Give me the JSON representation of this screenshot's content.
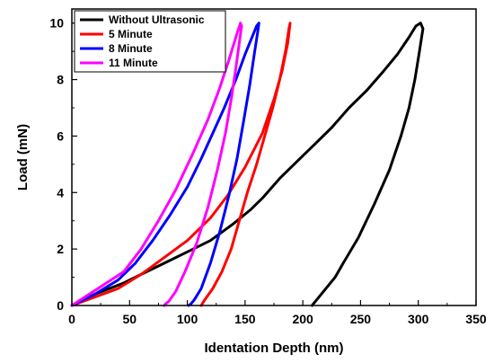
{
  "chart_data": {
    "type": "line",
    "xlabel": "Identation Depth (nm)",
    "ylabel": "Load (mN)",
    "xlim": [
      0,
      350
    ],
    "ylim": [
      0,
      10.5
    ],
    "x_ticks": [
      0,
      50,
      100,
      150,
      200,
      250,
      300,
      350
    ],
    "y_ticks": [
      0,
      2,
      4,
      6,
      8,
      10
    ],
    "grid": false,
    "legend_position": "top-left",
    "series": [
      {
        "name": "Without Ultrasonic",
        "color": "#000000",
        "x": [
          0,
          20,
          45,
          60,
          80,
          100,
          120,
          140,
          155,
          165,
          180,
          195,
          210,
          225,
          240,
          255,
          270,
          282,
          292,
          298,
          302,
          304,
          301,
          297,
          292,
          285,
          275,
          262,
          248,
          235,
          228,
          220,
          212,
          208
        ],
        "y": [
          0,
          0.4,
          0.8,
          1.1,
          1.5,
          1.9,
          2.3,
          2.9,
          3.4,
          3.8,
          4.5,
          5.1,
          5.7,
          6.3,
          7.0,
          7.6,
          8.3,
          8.9,
          9.5,
          9.9,
          10.0,
          9.8,
          9.0,
          8.0,
          7.0,
          6.0,
          4.8,
          3.6,
          2.4,
          1.5,
          1.0,
          0.6,
          0.2,
          0
        ],
        "values": [
          0,
          0.4,
          0.8,
          1.1,
          1.5,
          1.9,
          2.3,
          2.9,
          3.4,
          3.8,
          4.5,
          5.1,
          5.7,
          6.3,
          7.0,
          7.6,
          8.3,
          8.9,
          9.5,
          9.9,
          10.0,
          9.8,
          9.0,
          8.0,
          7.0,
          6.0,
          4.8,
          3.6,
          2.4,
          1.5,
          1.0,
          0.6,
          0.2,
          0
        ]
      },
      {
        "name": "5 Minute",
        "color": "#ff0000",
        "x": [
          0,
          20,
          40,
          60,
          80,
          100,
          120,
          135,
          150,
          165,
          175,
          182,
          187,
          189,
          188,
          185,
          180,
          174,
          167,
          160,
          152,
          145,
          138,
          130,
          122,
          115,
          112
        ],
        "y": [
          0,
          0.3,
          0.6,
          1.1,
          1.7,
          2.3,
          3.1,
          3.9,
          4.9,
          6.1,
          7.3,
          8.3,
          9.3,
          10.0,
          9.8,
          9.0,
          8.0,
          7.0,
          6.0,
          5.0,
          4.0,
          3.0,
          2.0,
          1.2,
          0.6,
          0.2,
          0
        ],
        "values": [
          0,
          0.3,
          0.6,
          1.1,
          1.7,
          2.3,
          3.1,
          3.9,
          4.9,
          6.1,
          7.3,
          8.3,
          9.3,
          10.0,
          9.8,
          9.0,
          8.0,
          7.0,
          6.0,
          5.0,
          4.0,
          3.0,
          2.0,
          1.2,
          0.6,
          0.2,
          0
        ]
      },
      {
        "name": "8 Minute",
        "color": "#0000ff",
        "x": [
          0,
          20,
          40,
          55,
          70,
          85,
          100,
          112,
          122,
          132,
          142,
          150,
          156,
          160,
          162,
          161,
          158,
          154,
          149,
          143,
          136,
          128,
          120,
          112,
          106,
          103,
          101
        ],
        "y": [
          0,
          0.4,
          0.9,
          1.5,
          2.3,
          3.2,
          4.2,
          5.2,
          6.1,
          7.0,
          8.0,
          8.9,
          9.5,
          9.9,
          10.0,
          9.7,
          8.9,
          7.8,
          6.6,
          5.2,
          3.9,
          2.6,
          1.5,
          0.6,
          0.2,
          0.05,
          0
        ],
        "values": [
          0,
          0.4,
          0.9,
          1.5,
          2.3,
          3.2,
          4.2,
          5.2,
          6.1,
          7.0,
          8.0,
          8.9,
          9.5,
          9.9,
          10.0,
          9.7,
          8.9,
          7.8,
          6.6,
          5.2,
          3.9,
          2.6,
          1.5,
          0.6,
          0.2,
          0.05,
          0
        ]
      },
      {
        "name": "11 Minute",
        "color": "#ff00ff",
        "x": [
          0,
          15,
          30,
          45,
          60,
          75,
          90,
          105,
          118,
          128,
          136,
          142,
          146,
          147,
          145,
          142,
          138,
          133,
          126,
          118,
          108,
          98,
          90,
          84,
          81,
          80
        ],
        "y": [
          0,
          0.4,
          0.8,
          1.2,
          2.0,
          3.0,
          4.1,
          5.4,
          6.6,
          7.7,
          8.7,
          9.5,
          10.0,
          9.9,
          9.3,
          8.4,
          7.3,
          6.1,
          4.8,
          3.5,
          2.2,
          1.2,
          0.5,
          0.15,
          0.05,
          0
        ],
        "values": [
          0,
          0.4,
          0.8,
          1.2,
          2.0,
          3.0,
          4.1,
          5.4,
          6.6,
          7.7,
          8.7,
          9.5,
          10.0,
          9.9,
          9.3,
          8.4,
          7.3,
          6.1,
          4.8,
          3.5,
          2.2,
          1.2,
          0.5,
          0.15,
          0.05,
          0
        ]
      }
    ]
  }
}
